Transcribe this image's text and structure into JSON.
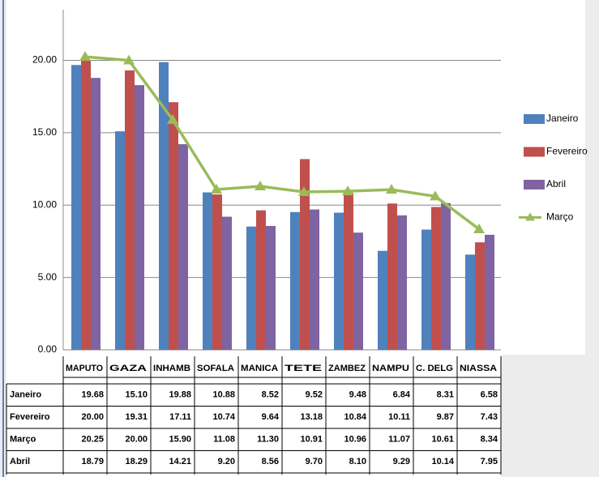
{
  "chart_data": {
    "type": "bar",
    "categories": [
      "MAPUTO",
      "GAZA",
      "INHAMB",
      "SOFALA",
      "MANICA",
      "TETE",
      "ZAMBEZ",
      "NAMPU",
      "C. DELG",
      "NIASSA"
    ],
    "series": [
      {
        "name": "Janeiro",
        "color": "#4f81bd",
        "type": "bar",
        "values": [
          19.68,
          15.1,
          19.88,
          10.88,
          8.52,
          9.52,
          9.48,
          6.84,
          8.31,
          6.58
        ],
        "value_labels": [
          "19.68",
          "15.10",
          "19.88",
          "10.88",
          "8.52",
          "9.52",
          "9.48",
          "6.84",
          "8.31",
          "6.58"
        ]
      },
      {
        "name": "Fevereiro",
        "color": "#c0504d",
        "type": "bar",
        "values": [
          20.0,
          19.31,
          17.11,
          10.74,
          9.64,
          13.18,
          10.84,
          10.11,
          9.87,
          7.43
        ],
        "value_labels": [
          "20.00",
          "19.31",
          "17.11",
          "10.74",
          "9.64",
          "13.18",
          "10.84",
          "10.11",
          "9.87",
          "7.43"
        ]
      },
      {
        "name": "Março",
        "color": "#9bbb59",
        "type": "line",
        "values": [
          20.25,
          20.0,
          15.9,
          11.08,
          11.3,
          10.91,
          10.96,
          11.07,
          10.61,
          8.34
        ],
        "value_labels": [
          "20.25",
          "20.00",
          "15.90",
          "11.08",
          "11.30",
          "10.91",
          "10.96",
          "11.07",
          "10.61",
          "8.34"
        ]
      },
      {
        "name": "Abril",
        "color": "#8064a2",
        "type": "bar",
        "values": [
          18.79,
          18.29,
          14.21,
          9.2,
          8.56,
          9.7,
          8.1,
          9.29,
          10.14,
          7.95
        ],
        "value_labels": [
          "18.79",
          "18.29",
          "14.21",
          "9.20",
          "8.56",
          "9.70",
          "8.10",
          "9.29",
          "10.14",
          "7.95"
        ]
      }
    ],
    "ylim": [
      0,
      23.5
    ],
    "yticks": [
      {
        "value": 0,
        "label": "0.00"
      },
      {
        "value": 5,
        "label": "5.00"
      },
      {
        "value": 10,
        "label": "10.00"
      },
      {
        "value": 15,
        "label": "15.00"
      },
      {
        "value": 20,
        "label": "20.00"
      }
    ],
    "grid": true,
    "legend": "right",
    "data_table": true
  }
}
